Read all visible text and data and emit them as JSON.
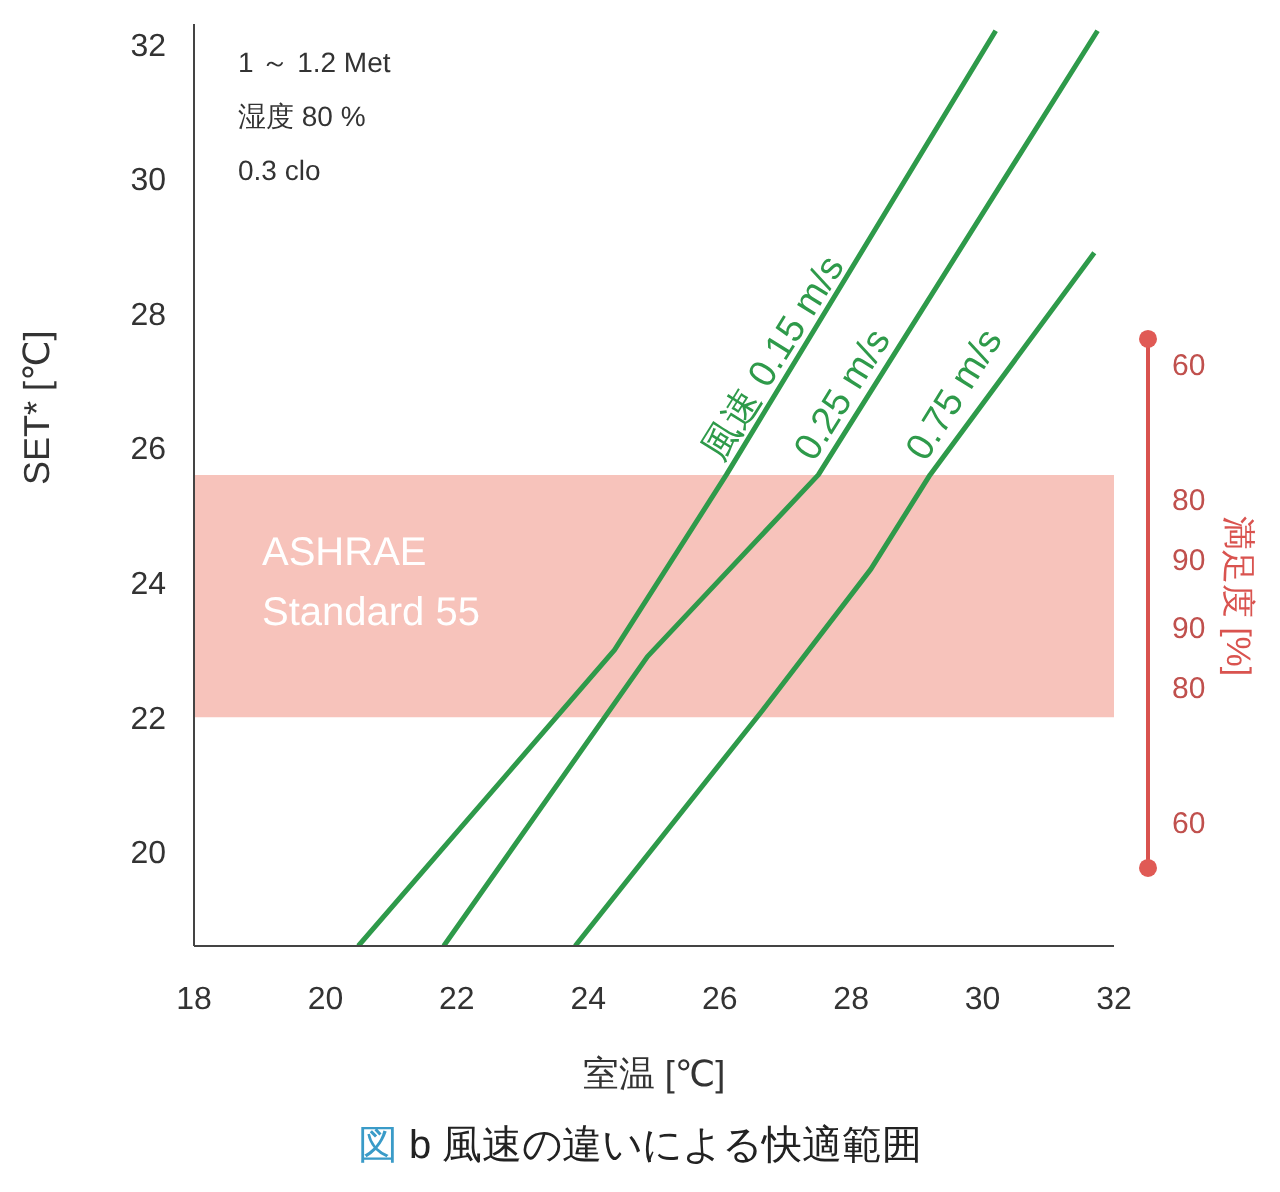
{
  "chart_data": {
    "type": "line",
    "title": "図 b 風速の違いによる快適範囲",
    "xlabel": "室温 [℃]",
    "ylabel": "SET* [℃]",
    "y2label": "満足度 [%]",
    "annotations": [
      "1 ～ 1.2 Met",
      "湿度 80 %",
      "0.3 clo",
      "60",
      "80",
      "90",
      "90",
      "80",
      "60"
    ],
    "xlim": [
      18,
      32
    ],
    "xticks": [
      18,
      20,
      22,
      24,
      26,
      28,
      30,
      32
    ],
    "ylim": [
      18.6,
      32.3
    ],
    "yticks": [
      20,
      22,
      24,
      26,
      28,
      30,
      32
    ],
    "series": [
      {
        "name": "風速 0.15 m/s",
        "color": "#2e9a4a",
        "x": [
          20.5,
          24.4,
          26.1,
          30.2
        ],
        "values": [
          18.6,
          23.0,
          25.6,
          32.2
        ]
      },
      {
        "name": "0.25 m/s",
        "color": "#2e9a4a",
        "x": [
          21.8,
          24.9,
          27.5,
          31.75
        ],
        "values": [
          18.6,
          22.9,
          25.6,
          32.2
        ]
      },
      {
        "name": "0.75 m/s",
        "color": "#2e9a4a",
        "x": [
          23.8,
          26.65,
          28.3,
          29.2,
          31.7
        ],
        "values": [
          18.6,
          22.1,
          24.2,
          25.6,
          28.9
        ]
      }
    ],
    "bands": [
      {
        "axis": "y",
        "from": 22.0,
        "to": 25.6,
        "label": "ASHRAE Standard 55",
        "color": "#f7c3bb"
      }
    ],
    "grid": false,
    "legend": false,
    "marker": "none",
    "line_style": "solid"
  }
}
